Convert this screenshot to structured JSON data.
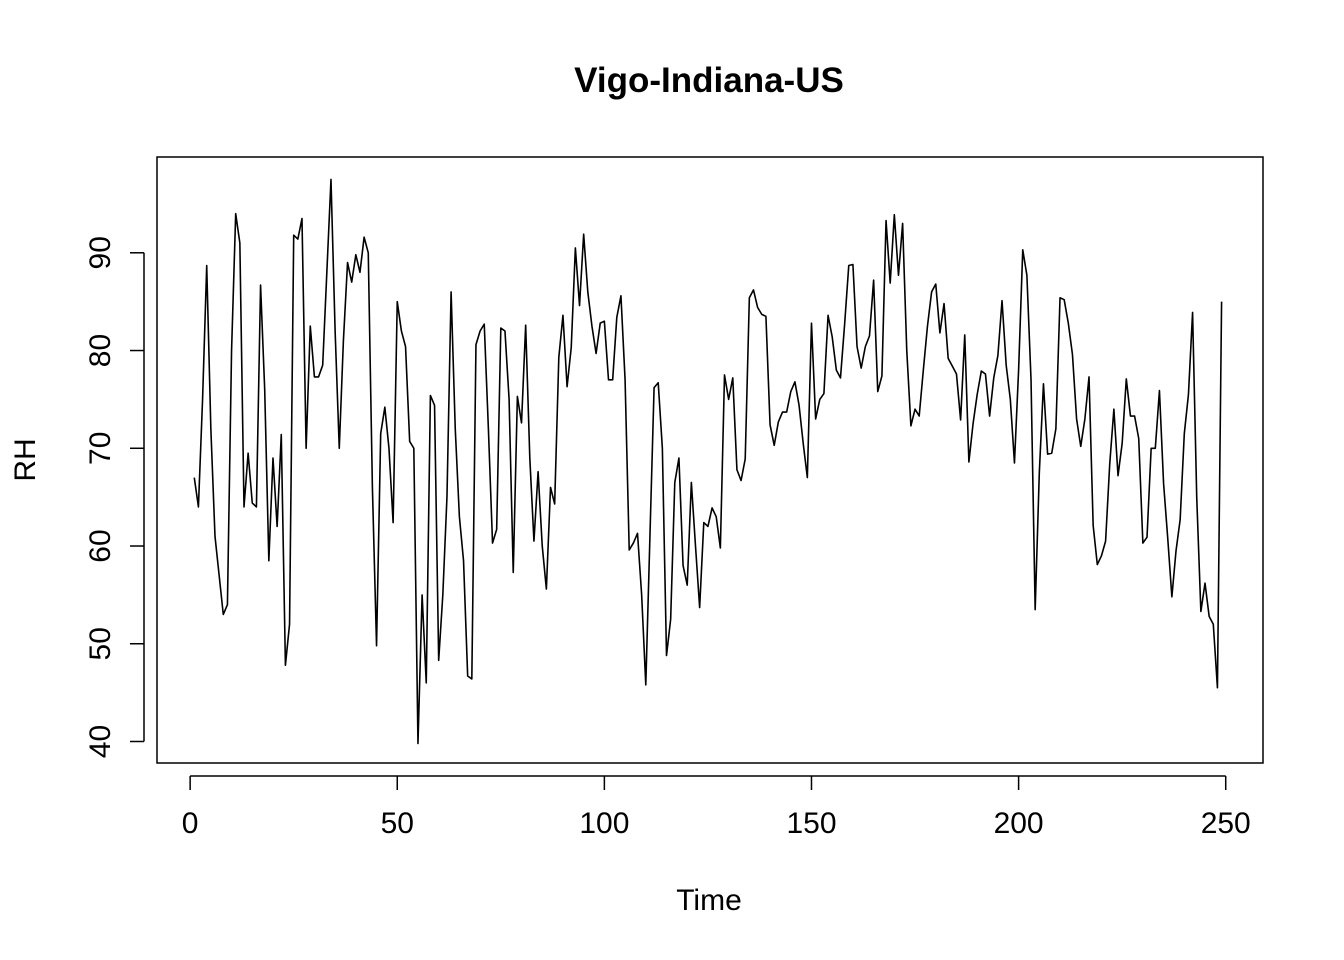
{
  "chart_data": {
    "type": "line",
    "title": "Vigo-Indiana-US",
    "xlabel": "Time",
    "ylabel": "RH",
    "xlim": [
      -8,
      259
    ],
    "ylim": [
      37.8,
      99.8
    ],
    "x_ticks": [
      0,
      50,
      100,
      150,
      200,
      250
    ],
    "y_ticks": [
      40,
      50,
      60,
      70,
      80,
      90
    ],
    "x_tick_labels": [
      "0",
      "50",
      "100",
      "150",
      "200",
      "250"
    ],
    "y_tick_labels": [
      "40",
      "50",
      "60",
      "70",
      "80",
      "90"
    ],
    "grid": false,
    "legend": "none",
    "line_color": "#000000",
    "series": [
      {
        "x_start": 1,
        "values": [
          67,
          64,
          75,
          88.7,
          72,
          61,
          57,
          53,
          54,
          80,
          94,
          91,
          64,
          69.5,
          64.4,
          64,
          86.7,
          76,
          58.5,
          69,
          62,
          71.4,
          47.8,
          52,
          91.8,
          91.4,
          93.5,
          70,
          82.5,
          77.3,
          77.3,
          78.5,
          88,
          97.5,
          82,
          70,
          81,
          89,
          87,
          89.8,
          88,
          91.6,
          90,
          66,
          49.8,
          71.5,
          74.2,
          70,
          62.4,
          85,
          82,
          80.4,
          70.7,
          70,
          39.8,
          55,
          46,
          75.4,
          74.4,
          48.3,
          55,
          65,
          86,
          72,
          63,
          58.5,
          46.7,
          46.4,
          80.6,
          82,
          82.7,
          72,
          60.3,
          61.7,
          82.3,
          82,
          75,
          57.3,
          75.3,
          72.6,
          82.6,
          69,
          60.5,
          67.6,
          60,
          55.6,
          66,
          64.3,
          79.3,
          83.6,
          76.3,
          80.3,
          90.5,
          84.6,
          91.9,
          86,
          82.5,
          79.7,
          82.8,
          83,
          77,
          77,
          83.4,
          85.6,
          77,
          59.6,
          60.3,
          61.3,
          55,
          45.8,
          61,
          76.2,
          76.7,
          70,
          48.8,
          52.5,
          66.5,
          69,
          58,
          56,
          66.5,
          60,
          53.7,
          62.4,
          62,
          63.9,
          63,
          59.8,
          77.5,
          75,
          77.2,
          67.8,
          66.7,
          68.9,
          85.4,
          86.2,
          84.4,
          83.7,
          83.5,
          72.4,
          70.3,
          72.7,
          73.7,
          73.7,
          75.8,
          76.8,
          74.4,
          70.5,
          67,
          82.8,
          73,
          75,
          75.6,
          83.6,
          81.4,
          78,
          77.2,
          82.7,
          88.7,
          88.8,
          80.4,
          78.2,
          80.4,
          81.5,
          87.2,
          75.8,
          77.4,
          93.3,
          86.9,
          93.9,
          87.7,
          93,
          80,
          72.3,
          74,
          73.3,
          78,
          82.5,
          86,
          86.8,
          81.8,
          84.8,
          79.2,
          78.4,
          77.6,
          72.9,
          81.6,
          68.6,
          72.5,
          75.5,
          77.9,
          77.6,
          73.3,
          77.2,
          79.5,
          85.1,
          78.5,
          75,
          68.5,
          78,
          90.3,
          87.7,
          77,
          53.5,
          67.5,
          76.6,
          69.4,
          69.5,
          72,
          85.4,
          85.2,
          82.8,
          79.6,
          73,
          70.2,
          73,
          77.3,
          62.1,
          58.1,
          59,
          60.5,
          68.4,
          74,
          67.2,
          70.5,
          77.1,
          73.3,
          73.3,
          71,
          60.3,
          60.9,
          70,
          70,
          75.9,
          66.4,
          60.8,
          54.8,
          59.5,
          62.7,
          71.5,
          75.5,
          83.9,
          65,
          53.3,
          56.2,
          52.8,
          52,
          45.5,
          85
        ]
      }
    ]
  }
}
